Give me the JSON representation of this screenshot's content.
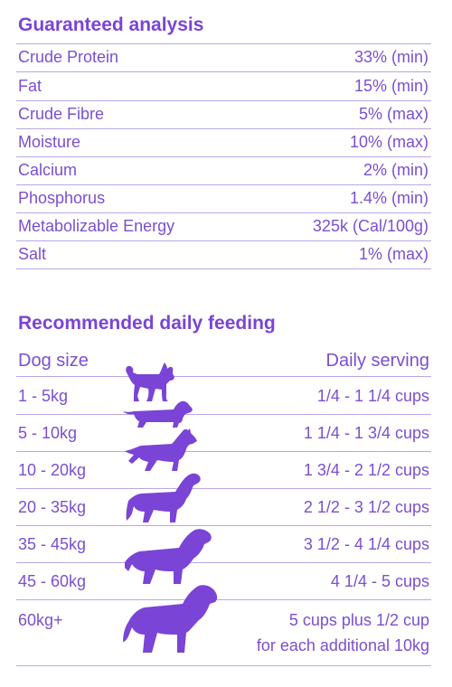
{
  "guaranteed": {
    "title": "Guaranteed analysis",
    "rows": [
      {
        "name": "Crude Protein",
        "value": "33% (min)"
      },
      {
        "name": "Fat",
        "value": "15% (min)"
      },
      {
        "name": "Crude Fibre",
        "value": "5% (max)"
      },
      {
        "name": "Moisture",
        "value": "10% (max)"
      },
      {
        "name": "Calcium",
        "value": "2% (min)"
      },
      {
        "name": "Phosphorus",
        "value": "1.4% (min)"
      },
      {
        "name": "Metabolizable Energy",
        "value": "325k (Cal/100g)"
      },
      {
        "name": "Salt",
        "value": "1% (max)"
      }
    ]
  },
  "feeding": {
    "title": "Recommended daily feeding",
    "header": {
      "size": "Dog size",
      "serving": "Daily serving"
    },
    "rows": [
      {
        "size": "1 - 5kg",
        "serving": "1/4 - 1 1/4 cups",
        "icon": "small-dog-icon"
      },
      {
        "size": "5 - 10kg",
        "serving": "1 1/4 - 1 3/4 cups",
        "icon": "dachshund-icon"
      },
      {
        "size": "10 - 20kg",
        "serving": "1 3/4 - 2 1/2 cups",
        "icon": "shepherd-dog-icon"
      },
      {
        "size": "20 - 35kg",
        "serving": "2 1/2 - 3 1/2 cups",
        "icon": "retriever-dog-icon"
      },
      {
        "size": "35 - 45kg",
        "serving": "3 1/2 - 4 1/4 cups",
        "icon": "large-dog-icon"
      },
      {
        "size": "45 - 60kg",
        "serving": "4 1/4 - 5 cups",
        "icon": "large-dog-icon"
      },
      {
        "size": "60kg+",
        "serving": "5 cups plus 1/2 cup",
        "serving_line2": "for each additional 10kg",
        "icon": "giant-dog-icon"
      }
    ]
  },
  "colors": {
    "accent": "#7a44d6",
    "text": "#7b4fd0",
    "rule": "#b9a7e4"
  }
}
